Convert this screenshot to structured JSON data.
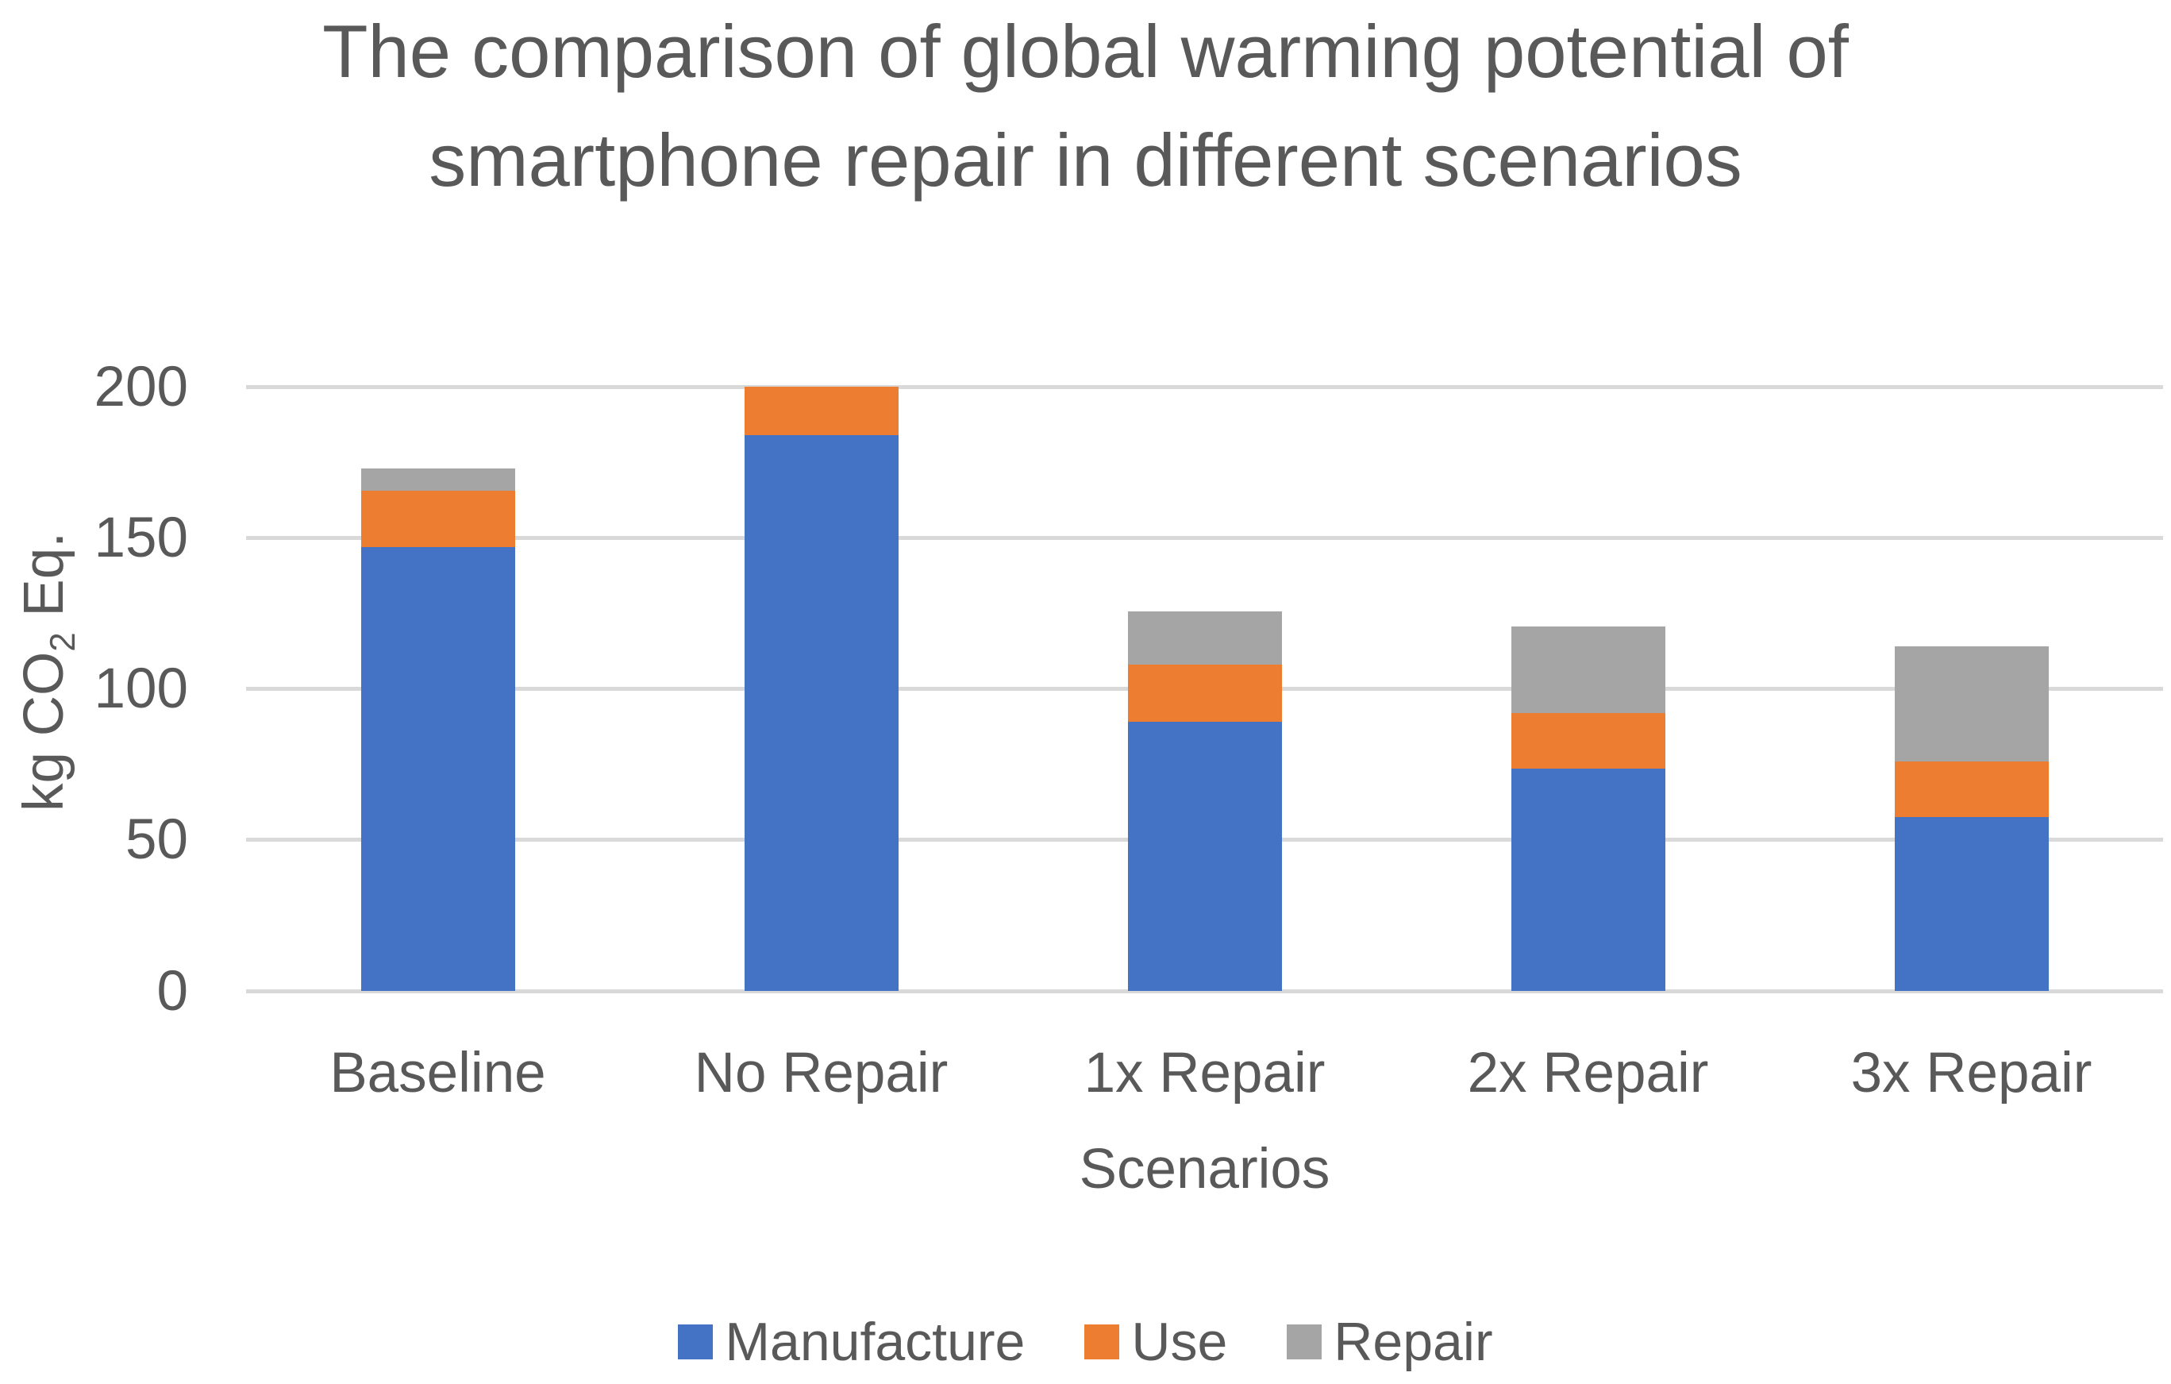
{
  "chart_data": {
    "type": "bar",
    "stacked": true,
    "title": "The comparison of global warming potential of smartphone repair in different scenarios",
    "title_lines": [
      "The comparison of global warming potential of",
      "smartphone repair in different scenarios"
    ],
    "xlabel": "Scenarios",
    "ylabel": {
      "text": "kg CO2 Eq.",
      "prefix": "kg CO",
      "sub": "2",
      "suffix": " Eq."
    },
    "categories": [
      "Baseline",
      "No Repair",
      "1x Repair",
      "2x Repair",
      "3x Repair"
    ],
    "series": [
      {
        "name": "Manufacture",
        "color": "#4472C4",
        "values": [
          147,
          184,
          89,
          73.5,
          57.5
        ]
      },
      {
        "name": "Use",
        "color": "#ED7D31",
        "values": [
          18.5,
          16,
          19,
          18.5,
          18.5
        ]
      },
      {
        "name": "Repair",
        "color": "#A5A5A5",
        "values": [
          7.5,
          0,
          17.5,
          28.5,
          38
        ]
      }
    ],
    "stack_totals": [
      173,
      200,
      125.5,
      120.5,
      114
    ],
    "yticks": [
      0,
      50,
      100,
      150,
      200
    ],
    "ylim": [
      0,
      200
    ],
    "grid": true,
    "legend_position": "bottom",
    "colors": {
      "text": "#595959",
      "gridline": "#D9D9D9",
      "background": "#FFFFFF"
    }
  }
}
